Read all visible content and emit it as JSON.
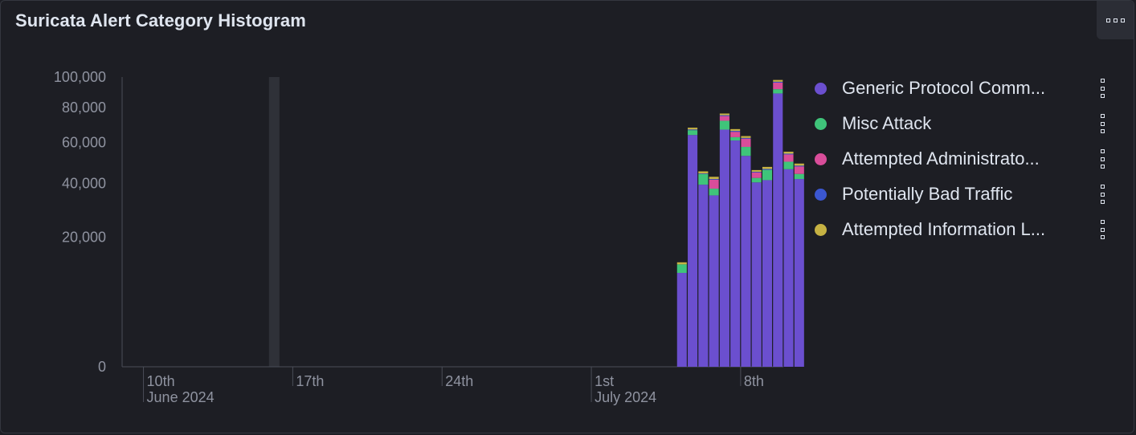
{
  "panel": {
    "title": "Suricata Alert Category Histogram",
    "options_icon": "three-dots-horizontal-icon"
  },
  "legend": {
    "items": [
      {
        "label": "Generic Protocol Comm...",
        "color": "#6b4fcf",
        "menu_icon": "vertical-dots-icon"
      },
      {
        "label": "Misc Attack",
        "color": "#3fc47a",
        "menu_icon": "vertical-dots-icon"
      },
      {
        "label": "Attempted Administrato...",
        "color": "#d94d9a",
        "menu_icon": "vertical-dots-icon"
      },
      {
        "label": "Potentially Bad Traffic",
        "color": "#3b57d1",
        "menu_icon": "vertical-dots-icon"
      },
      {
        "label": "Attempted Information L...",
        "color": "#c6b243",
        "menu_icon": "vertical-dots-icon"
      }
    ]
  },
  "chart_data": {
    "type": "bar",
    "stacked": true,
    "y_scale": "sqrt",
    "ylim": [
      0,
      100000
    ],
    "y_ticks": [
      {
        "value": 0,
        "label": "0"
      },
      {
        "value": 20000,
        "label": "20,000"
      },
      {
        "value": 40000,
        "label": "40,000"
      },
      {
        "value": 60000,
        "label": "60,000"
      },
      {
        "value": 80000,
        "label": "80,000"
      },
      {
        "value": 100000,
        "label": "100,000"
      }
    ],
    "x_range": [
      "2024-06-09",
      "2024-07-10"
    ],
    "x_ticks": [
      {
        "date": "2024-06-10",
        "label": "10th",
        "sublabel": "June 2024"
      },
      {
        "date": "2024-06-17",
        "label": "17th",
        "sublabel": ""
      },
      {
        "date": "2024-06-24",
        "label": "24th",
        "sublabel": ""
      },
      {
        "date": "2024-07-01",
        "label": "1st",
        "sublabel": "July 2024"
      },
      {
        "date": "2024-07-08",
        "label": "8th",
        "sublabel": ""
      }
    ],
    "highlight_date": "2024-06-16",
    "series_names": [
      "Generic Protocol Comm...",
      "Misc Attack",
      "Attempted Administrato...",
      "Potentially Bad Traffic",
      "Attempted Information L..."
    ],
    "series_colors": [
      "#6b4fcf",
      "#3fc47a",
      "#d94d9a",
      "#3b57d1",
      "#c6b243"
    ],
    "bars": [
      {
        "date": "2024-07-05 00:00",
        "values": [
          10500,
          2000,
          0,
          0,
          500
        ]
      },
      {
        "date": "2024-07-05 12:00",
        "values": [
          64000,
          2700,
          0,
          400,
          1000
        ]
      },
      {
        "date": "2024-07-06 00:00",
        "values": [
          39500,
          4700,
          0,
          300,
          1000
        ]
      },
      {
        "date": "2024-07-06 12:00",
        "values": [
          35000,
          2800,
          3900,
          300,
          1000
        ]
      },
      {
        "date": "2024-07-07 00:00",
        "values": [
          67000,
          5100,
          2800,
          500,
          1000
        ]
      },
      {
        "date": "2024-07-07 12:00",
        "values": [
          61000,
          1800,
          3000,
          500,
          1000
        ]
      },
      {
        "date": "2024-07-08 00:00",
        "values": [
          53000,
          4600,
          4400,
          400,
          1000
        ]
      },
      {
        "date": "2024-07-08 12:00",
        "values": [
          40500,
          2000,
          2500,
          300,
          800
        ]
      },
      {
        "date": "2024-07-09 00:00",
        "values": [
          41500,
          4700,
          0,
          400,
          1000
        ]
      },
      {
        "date": "2024-07-09 12:00",
        "values": [
          89000,
          2800,
          4400,
          600,
          1200
        ]
      },
      {
        "date": "2024-07-10 00:00",
        "values": [
          46500,
          3600,
          3600,
          400,
          1000
        ]
      },
      {
        "date": "2024-07-10 12:00",
        "values": [
          42000,
          2300,
          3500,
          400,
          1000
        ]
      }
    ]
  }
}
